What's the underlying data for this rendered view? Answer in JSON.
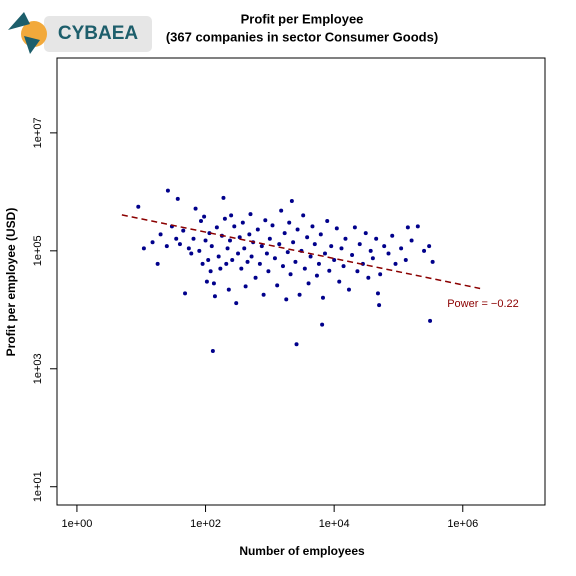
{
  "logo_text": "CYBAEA",
  "chart_data": {
    "type": "scatter",
    "title": "Profit per Employee",
    "subtitle": "(367 companies in sector Consumer Goods)",
    "x_label": "Number of employees",
    "y_label": "Profit per employee (USD)",
    "log_x": true,
    "log_y": true,
    "xlim": [
      0.49,
      19000000
    ],
    "ylim": [
      4.9,
      186000000
    ],
    "xticks": [
      {
        "value": 1,
        "label": "1e+00"
      },
      {
        "value": 100,
        "label": "1e+02"
      },
      {
        "value": 10000,
        "label": "1e+04"
      },
      {
        "value": 1000000,
        "label": "1e+06"
      }
    ],
    "yticks": [
      {
        "value": 10,
        "label": "1e+01"
      },
      {
        "value": 1000,
        "label": "1e+03"
      },
      {
        "value": 100000,
        "label": "1e+05"
      },
      {
        "value": 10000000,
        "label": "1e+07"
      }
    ],
    "series": [
      {
        "color": "#00008b",
        "x": [
          26,
          9,
          11,
          37,
          130,
          2600,
          6500,
          310000,
          340000,
          300000,
          200000,
          140000,
          50000,
          48000,
          2200,
          190,
          140,
          48,
          30,
          35,
          40,
          45,
          55,
          60,
          65,
          70,
          80,
          85,
          90,
          95,
          100,
          105,
          110,
          115,
          120,
          125,
          135,
          150,
          160,
          170,
          180,
          200,
          210,
          220,
          230,
          240,
          250,
          260,
          280,
          300,
          320,
          340,
          360,
          380,
          400,
          420,
          450,
          480,
          500,
          520,
          550,
          600,
          650,
          700,
          750,
          800,
          850,
          900,
          950,
          1000,
          1100,
          1200,
          1300,
          1400,
          1500,
          1600,
          1700,
          1800,
          1900,
          2000,
          2100,
          2300,
          2500,
          2700,
          2900,
          3100,
          3300,
          3500,
          3800,
          4000,
          4300,
          4600,
          5000,
          5400,
          5800,
          6200,
          6700,
          7200,
          7800,
          8400,
          9000,
          10000,
          11000,
          12000,
          13000,
          14000,
          15000,
          17000,
          19000,
          21000,
          23000,
          25000,
          28000,
          31000,
          34000,
          37000,
          40000,
          45000,
          52000,
          60000,
          70000,
          80000,
          90000,
          110000,
          130000,
          160000,
          250000,
          15,
          20,
          25,
          18
        ],
        "values": [
          1050000,
          560000,
          110000,
          760000,
          2000,
          2600,
          5600,
          6500,
          65000,
          120000,
          260000,
          250000,
          12000,
          19000,
          700000,
          790000,
          17000,
          19000,
          260000,
          160000,
          130000,
          220000,
          110000,
          90000,
          160000,
          520000,
          100000,
          320000,
          60000,
          380000,
          150000,
          30000,
          70000,
          200000,
          45000,
          120000,
          28000,
          250000,
          80000,
          50000,
          180000,
          350000,
          60000,
          110000,
          22000,
          150000,
          400000,
          70000,
          260000,
          13000,
          90000,
          170000,
          50000,
          300000,
          110000,
          25000,
          65000,
          190000,
          420000,
          80000,
          140000,
          35000,
          230000,
          60000,
          120000,
          18000,
          330000,
          90000,
          45000,
          160000,
          270000,
          75000,
          26000,
          130000,
          480000,
          55000,
          200000,
          15000,
          95000,
          300000,
          40000,
          140000,
          65000,
          230000,
          18000,
          100000,
          400000,
          50000,
          170000,
          28000,
          80000,
          260000,
          130000,
          38000,
          60000,
          190000,
          16000,
          90000,
          320000,
          46000,
          120000,
          70000,
          240000,
          30000,
          110000,
          55000,
          160000,
          22000,
          85000,
          250000,
          45000,
          130000,
          60000,
          200000,
          35000,
          100000,
          75000,
          160000,
          40000,
          120000,
          90000,
          180000,
          60000,
          110000,
          70000,
          150000,
          100000,
          140000,
          190000,
          120000,
          60000
        ]
      }
    ],
    "trend": {
      "x": [
        5,
        1860000
      ],
      "values": [
        407000,
        23000
      ],
      "color": "#8b0000"
    },
    "annotation": "Power = −0.22"
  }
}
